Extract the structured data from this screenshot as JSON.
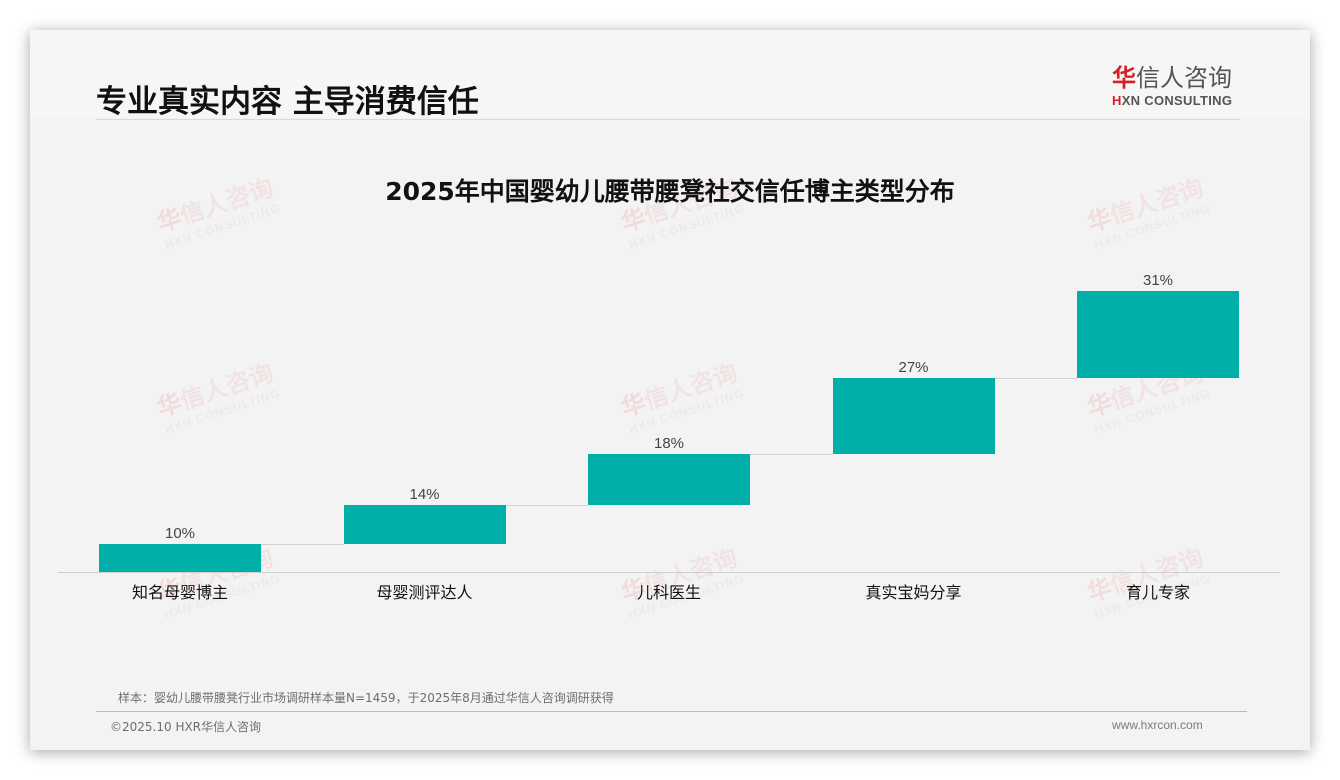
{
  "header": {
    "title": "专业真实内容 主导消费信任",
    "logo": {
      "cn_first": "华",
      "cn_rest": "信人咨询",
      "en_mark": "H",
      "en_rest": "XN CONSULTING",
      "brand_color": "#d42128"
    }
  },
  "watermark": {
    "cn_first": "华",
    "cn_rest": "信人咨询",
    "en": "HXN CONSULTING"
  },
  "chart_data": {
    "type": "bar",
    "subtype": "waterfall",
    "title": "2025年中国婴幼儿腰带腰凳社交信任博主类型分布",
    "categories": [
      "知名母婴博主",
      "母婴测评达人",
      "儿科医生",
      "真实宝妈分享",
      "育儿专家"
    ],
    "values": [
      10,
      14,
      18,
      27,
      31
    ],
    "value_labels": [
      "10%",
      "14%",
      "18%",
      "27%",
      "31%"
    ],
    "unit": "%",
    "xlabel": "",
    "ylabel": "",
    "ylim": [
      0,
      100
    ],
    "grid": false,
    "legend": false,
    "bar_color": "#00afa7"
  },
  "footer": {
    "note": "样本：婴幼儿腰带腰凳行业市场调研样本量N=1459，于2025年8月通过华信人咨询调研获得",
    "copyright": "©2025.10 HXR华信人咨询",
    "website": "www.hxrcon.com"
  }
}
